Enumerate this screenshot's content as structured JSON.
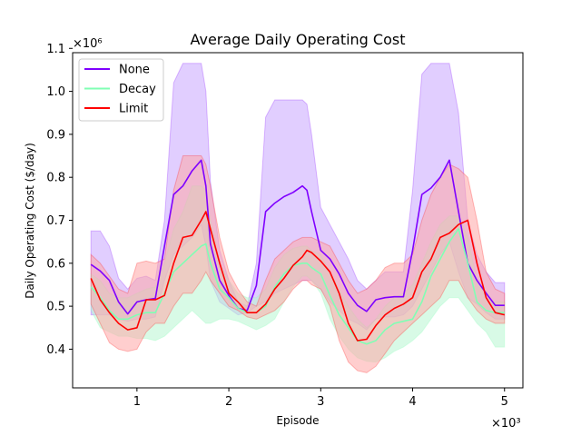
{
  "chart_data": {
    "type": "line",
    "title": "Average Daily Operating Cost",
    "xlabel": "Episode",
    "ylabel": "Daily Operating Cost ($/day)",
    "x_offset_text": "×10³",
    "y_offset_text": "×10⁶",
    "xlim": [
      300,
      5200
    ],
    "ylim": [
      310000,
      1090000
    ],
    "xticks": [
      1000,
      2000,
      3000,
      4000,
      5000
    ],
    "xtick_labels": [
      "1",
      "2",
      "3",
      "4",
      "5"
    ],
    "yticks": [
      400000,
      500000,
      600000,
      700000,
      800000,
      900000,
      1000000,
      1100000
    ],
    "ytick_labels": [
      "0.4",
      "0.5",
      "0.6",
      "0.7",
      "0.8",
      "0.9",
      "1.0",
      "1.1"
    ],
    "grid": false,
    "legend_position": "top-left",
    "x": [
      500,
      600,
      700,
      800,
      900,
      1000,
      1100,
      1200,
      1300,
      1400,
      1500,
      1600,
      1700,
      1750,
      1800,
      1900,
      2000,
      2100,
      2200,
      2300,
      2400,
      2500,
      2600,
      2700,
      2800,
      2850,
      2900,
      3000,
      3100,
      3200,
      3300,
      3400,
      3500,
      3600,
      3700,
      3800,
      3900,
      4000,
      4100,
      4200,
      4300,
      4400,
      4500,
      4600,
      4700,
      4800,
      4900,
      5000
    ],
    "series": [
      {
        "name": "None",
        "color": "#7f00ff",
        "band_color": "#c9a5ff",
        "values": [
          597000,
          582000,
          560000,
          510000,
          482000,
          510000,
          515000,
          518000,
          640000,
          760000,
          780000,
          815000,
          840000,
          780000,
          645000,
          560000,
          525000,
          495000,
          490000,
          548000,
          720000,
          740000,
          755000,
          765000,
          780000,
          770000,
          720000,
          630000,
          610000,
          575000,
          530000,
          502000,
          488000,
          515000,
          520000,
          522000,
          522000,
          630000,
          760000,
          775000,
          800000,
          840000,
          720000,
          600000,
          560000,
          530000,
          502000,
          502000
        ],
        "upper": [
          675000,
          675000,
          640000,
          565000,
          540000,
          565000,
          570000,
          560000,
          700000,
          1020000,
          1065000,
          1065000,
          1065000,
          1000000,
          790000,
          630000,
          560000,
          510000,
          500000,
          600000,
          940000,
          980000,
          980000,
          980000,
          980000,
          970000,
          900000,
          730000,
          690000,
          650000,
          610000,
          560000,
          540000,
          560000,
          580000,
          580000,
          580000,
          770000,
          1040000,
          1065000,
          1065000,
          1065000,
          950000,
          700000,
          620000,
          580000,
          555000,
          555000
        ],
        "lower": [
          480000,
          480000,
          480000,
          470000,
          465000,
          470000,
          470000,
          475000,
          560000,
          620000,
          640000,
          660000,
          690000,
          640000,
          560000,
          510000,
          495000,
          480000,
          485000,
          500000,
          510000,
          530000,
          540000,
          550000,
          560000,
          560000,
          560000,
          540000,
          510000,
          490000,
          470000,
          460000,
          445000,
          470000,
          475000,
          475000,
          480000,
          500000,
          540000,
          580000,
          620000,
          650000,
          580000,
          520000,
          505000,
          485000,
          470000,
          470000
        ]
      },
      {
        "name": "Decay",
        "color": "#80ffb4",
        "band_color": "#b8f5d2",
        "values": [
          545000,
          520000,
          490000,
          470000,
          470000,
          480000,
          485000,
          485000,
          530000,
          580000,
          600000,
          620000,
          640000,
          645000,
          600000,
          540000,
          520000,
          495000,
          485000,
          485000,
          500000,
          545000,
          575000,
          595000,
          600000,
          600000,
          590000,
          575000,
          525000,
          480000,
          450000,
          420000,
          412000,
          420000,
          445000,
          460000,
          465000,
          470000,
          510000,
          570000,
          610000,
          650000,
          680000,
          600000,
          510000,
          490000,
          485000,
          485000
        ],
        "upper": [
          575000,
          560000,
          530000,
          520000,
          520000,
          530000,
          540000,
          545000,
          600000,
          680000,
          720000,
          780000,
          780000,
          770000,
          700000,
          600000,
          560000,
          530000,
          520000,
          520000,
          540000,
          590000,
          620000,
          635000,
          640000,
          640000,
          630000,
          620000,
          580000,
          540000,
          500000,
          470000,
          450000,
          470000,
          500000,
          520000,
          530000,
          550000,
          600000,
          650000,
          690000,
          710000,
          710000,
          660000,
          560000,
          520000,
          510000,
          510000
        ],
        "lower": [
          490000,
          450000,
          440000,
          430000,
          430000,
          425000,
          425000,
          420000,
          430000,
          450000,
          470000,
          490000,
          470000,
          460000,
          460000,
          470000,
          470000,
          465000,
          455000,
          445000,
          455000,
          470000,
          510000,
          545000,
          570000,
          570000,
          560000,
          530000,
          470000,
          430000,
          400000,
          380000,
          372000,
          370000,
          380000,
          395000,
          405000,
          420000,
          440000,
          470000,
          500000,
          520000,
          520000,
          490000,
          460000,
          440000,
          405000,
          405000
        ]
      },
      {
        "name": "Limit",
        "color": "#ff0000",
        "band_color": "#ffa6a6",
        "values": [
          565000,
          515000,
          485000,
          460000,
          445000,
          450000,
          515000,
          515000,
          525000,
          600000,
          660000,
          665000,
          700000,
          720000,
          680000,
          600000,
          530000,
          510000,
          485000,
          485000,
          505000,
          540000,
          565000,
          595000,
          615000,
          630000,
          625000,
          605000,
          580000,
          530000,
          460000,
          420000,
          423000,
          455000,
          480000,
          495000,
          505000,
          520000,
          580000,
          610000,
          660000,
          670000,
          690000,
          700000,
          600000,
          520000,
          485000,
          480000
        ],
        "upper": [
          620000,
          600000,
          570000,
          540000,
          530000,
          600000,
          605000,
          600000,
          610000,
          770000,
          850000,
          850000,
          850000,
          830000,
          780000,
          660000,
          580000,
          540000,
          510000,
          500000,
          560000,
          610000,
          630000,
          650000,
          660000,
          660000,
          660000,
          650000,
          640000,
          600000,
          560000,
          530000,
          540000,
          560000,
          590000,
          600000,
          600000,
          620000,
          700000,
          760000,
          800000,
          830000,
          820000,
          800000,
          700000,
          580000,
          540000,
          530000
        ],
        "lower": [
          505000,
          460000,
          415000,
          400000,
          395000,
          400000,
          440000,
          460000,
          460000,
          500000,
          530000,
          530000,
          560000,
          580000,
          560000,
          530000,
          500000,
          490000,
          475000,
          470000,
          480000,
          490000,
          510000,
          540000,
          560000,
          560000,
          550000,
          540000,
          500000,
          420000,
          370000,
          350000,
          345000,
          360000,
          390000,
          420000,
          440000,
          460000,
          480000,
          500000,
          520000,
          560000,
          560000,
          520000,
          490000,
          470000,
          460000,
          460000
        ]
      }
    ]
  }
}
